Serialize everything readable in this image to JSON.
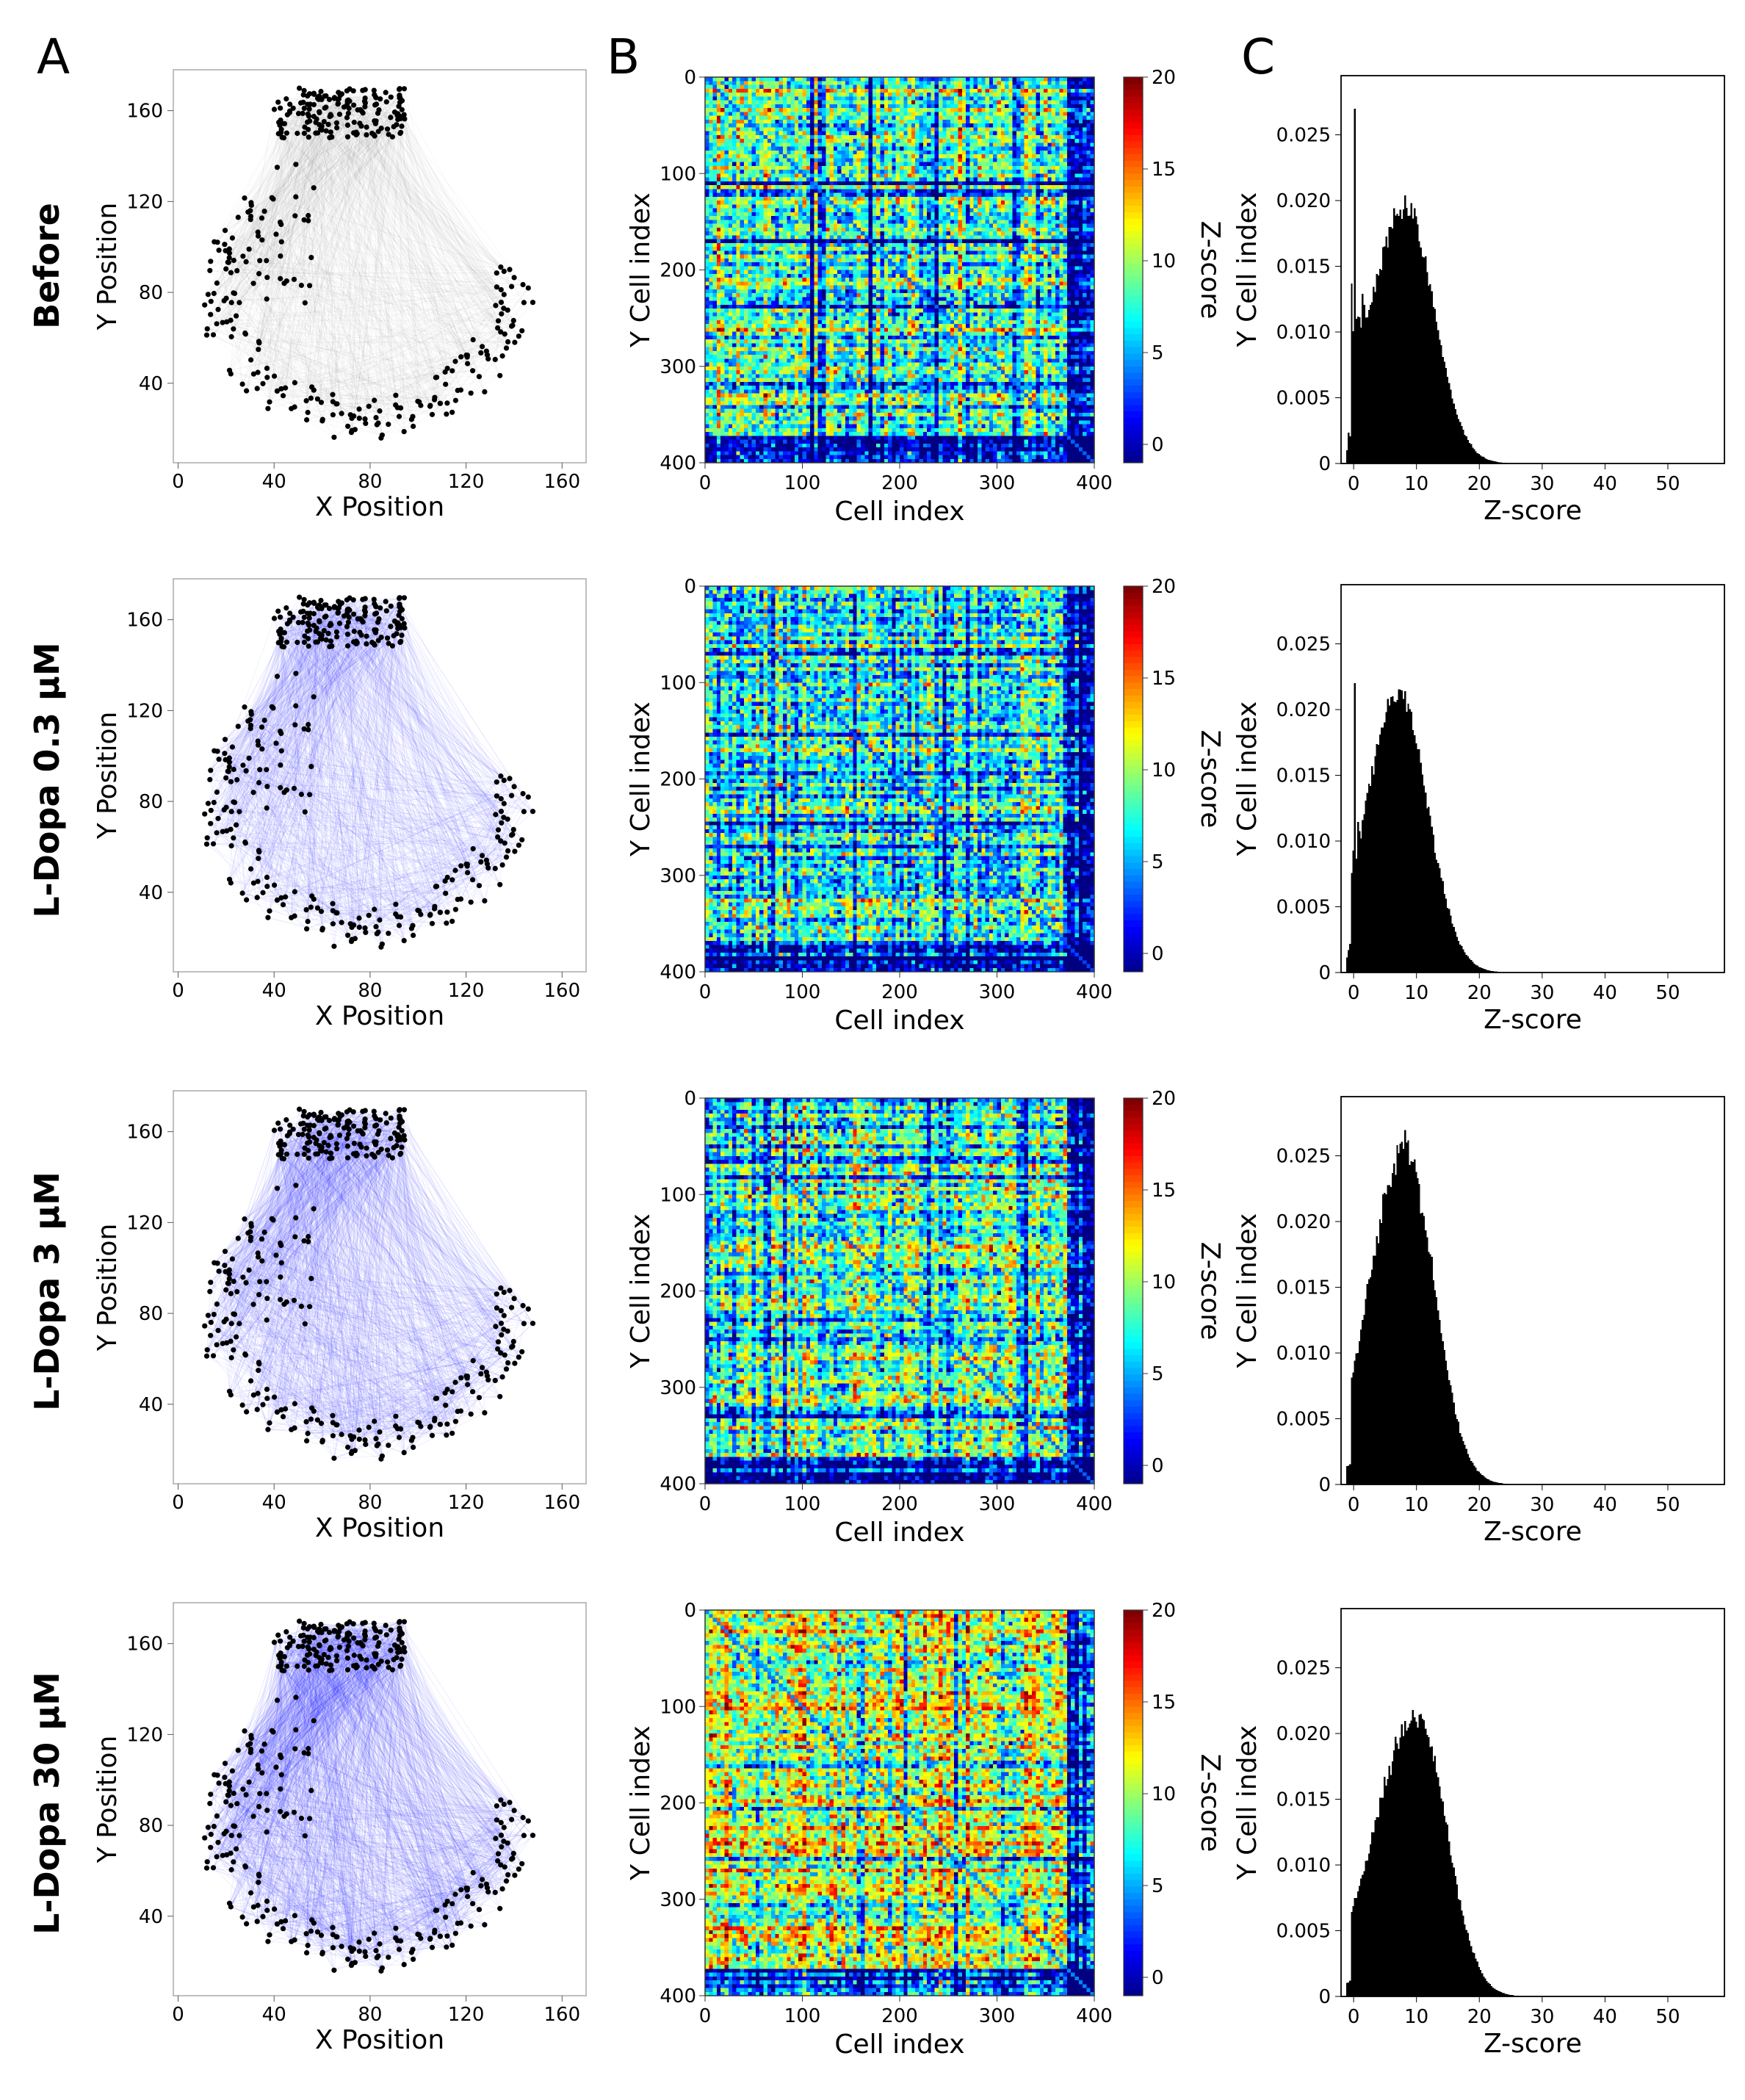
{
  "panels": {
    "A": "A",
    "B": "B",
    "C": "C"
  },
  "row_labels": [
    "Before",
    "L-Dopa 0.3 µM",
    "L-Dopa 3 µM",
    "L-Dopa 30 µM"
  ],
  "colors": {
    "before_edges": "#808080",
    "ldopa_edges": "#1a1aff",
    "nodes": "#000000",
    "hist": "#000000"
  },
  "chart_data": [
    {
      "type": "scatter",
      "name": "network-before",
      "xlabel": "X Position",
      "ylabel": "Y Position",
      "xticks": [
        0,
        40,
        80,
        120,
        160
      ],
      "yticks": [
        40,
        80,
        120,
        160
      ],
      "xlim": [
        -2,
        170
      ],
      "ylim": [
        5,
        178
      ],
      "edge_color": "#808080",
      "edge_density": 0.3,
      "cells": 400
    },
    {
      "type": "scatter",
      "name": "network-ldopa-0.3",
      "xlabel": "X Position",
      "ylabel": "Y Position",
      "xticks": [
        0,
        40,
        80,
        120,
        160
      ],
      "yticks": [
        40,
        80,
        120,
        160
      ],
      "xlim": [
        -2,
        170
      ],
      "ylim": [
        5,
        178
      ],
      "edge_color": "#1a1aff",
      "edge_density": 0.45,
      "cells": 400
    },
    {
      "type": "scatter",
      "name": "network-ldopa-3",
      "xlabel": "X Position",
      "ylabel": "Y Position",
      "xticks": [
        0,
        40,
        80,
        120,
        160
      ],
      "yticks": [
        40,
        80,
        120,
        160
      ],
      "xlim": [
        -2,
        170
      ],
      "ylim": [
        5,
        178
      ],
      "edge_color": "#1a1aff",
      "edge_density": 0.6,
      "cells": 400
    },
    {
      "type": "scatter",
      "name": "network-ldopa-30",
      "xlabel": "X Position",
      "ylabel": "Y Position",
      "xticks": [
        0,
        40,
        80,
        120,
        160
      ],
      "yticks": [
        40,
        80,
        120,
        160
      ],
      "xlim": [
        -2,
        170
      ],
      "ylim": [
        5,
        178
      ],
      "edge_color": "#1a1aff",
      "edge_density": 0.8,
      "cells": 400
    },
    {
      "type": "heatmap",
      "name": "zscore-matrix-before",
      "xlabel": "Cell index",
      "ylabel": "Y Cell index",
      "colorbar_label": "Z-score",
      "xticks": [
        0,
        100,
        200,
        300,
        400
      ],
      "yticks": [
        0,
        100,
        200,
        300,
        400
      ],
      "cbar_ticks": [
        0,
        5,
        10,
        15,
        20
      ],
      "vmin": -1,
      "vmax": 20,
      "cells": 400,
      "mean_z": 9
    },
    {
      "type": "heatmap",
      "name": "zscore-matrix-ldopa-0.3",
      "xlabel": "Cell index",
      "ylabel": "Y Cell index",
      "colorbar_label": "Z-score",
      "xticks": [
        0,
        100,
        200,
        300,
        400
      ],
      "yticks": [
        0,
        100,
        200,
        300,
        400
      ],
      "cbar_ticks": [
        0,
        5,
        10,
        15,
        20
      ],
      "vmin": -1,
      "vmax": 20,
      "cells": 400,
      "mean_z": 7.5
    },
    {
      "type": "heatmap",
      "name": "zscore-matrix-ldopa-3",
      "xlabel": "Cell index",
      "ylabel": "Y Cell index",
      "colorbar_label": "Z-score",
      "xticks": [
        0,
        100,
        200,
        300,
        400
      ],
      "yticks": [
        0,
        100,
        200,
        300,
        400
      ],
      "cbar_ticks": [
        0,
        5,
        10,
        15,
        20
      ],
      "vmin": -1,
      "vmax": 20,
      "cells": 400,
      "mean_z": 9
    },
    {
      "type": "heatmap",
      "name": "zscore-matrix-ldopa-30",
      "xlabel": "Cell index",
      "ylabel": "Y Cell index",
      "colorbar_label": "Z-score",
      "xticks": [
        0,
        100,
        200,
        300,
        400
      ],
      "yticks": [
        0,
        100,
        200,
        300,
        400
      ],
      "cbar_ticks": [
        0,
        5,
        10,
        15,
        20
      ],
      "vmin": -1,
      "vmax": 20,
      "cells": 400,
      "mean_z": 11
    },
    {
      "type": "bar",
      "name": "zscore-histogram-before",
      "xlabel": "Z-score",
      "ylabel": "Y Cell index",
      "xticks": [
        0,
        10,
        20,
        30,
        40,
        50
      ],
      "yticks": [
        0,
        0.005,
        0.01,
        0.015,
        0.02,
        0.025
      ],
      "ytick_labels": [
        "0",
        "0.005",
        "0.010",
        "0.015",
        "0.020",
        "0.025"
      ],
      "xlim": [
        -2,
        59
      ],
      "ylim": [
        0,
        0.0295
      ],
      "peak_z": 8,
      "peak_density": 0.0195,
      "spike_z": 0,
      "spike_density": 0.027
    },
    {
      "type": "bar",
      "name": "zscore-histogram-ldopa-0.3",
      "xlabel": "Z-score",
      "ylabel": "Y Cell index",
      "xticks": [
        0,
        10,
        20,
        30,
        40,
        50
      ],
      "yticks": [
        0,
        0.005,
        0.01,
        0.015,
        0.02,
        0.025
      ],
      "ytick_labels": [
        "0",
        "0.005",
        "0.010",
        "0.015",
        "0.020",
        "0.025"
      ],
      "xlim": [
        -2,
        59
      ],
      "ylim": [
        0,
        0.0295
      ],
      "peak_z": 7,
      "peak_density": 0.0213,
      "spike_z": 0,
      "spike_density": 0.022
    },
    {
      "type": "bar",
      "name": "zscore-histogram-ldopa-3",
      "xlabel": "Z-score",
      "ylabel": "Y Cell index",
      "xticks": [
        0,
        10,
        20,
        30,
        40,
        50
      ],
      "yticks": [
        0,
        0.005,
        0.01,
        0.015,
        0.02,
        0.025
      ],
      "ytick_labels": [
        "0",
        "0.005",
        "0.010",
        "0.015",
        "0.020",
        "0.025"
      ],
      "xlim": [
        -2,
        59
      ],
      "ylim": [
        0,
        0.0295
      ],
      "peak_z": 8,
      "peak_density": 0.0255
    },
    {
      "type": "bar",
      "name": "zscore-histogram-ldopa-30",
      "xlabel": "Z-score",
      "ylabel": "Y Cell index",
      "xticks": [
        0,
        10,
        20,
        30,
        40,
        50
      ],
      "yticks": [
        0,
        0.005,
        0.01,
        0.015,
        0.02,
        0.025
      ],
      "ytick_labels": [
        "0",
        "0.005",
        "0.010",
        "0.015",
        "0.020",
        "0.025"
      ],
      "xlim": [
        -2,
        59
      ],
      "ylim": [
        0,
        0.0295
      ],
      "peak_z": 10,
      "peak_density": 0.0215
    }
  ]
}
